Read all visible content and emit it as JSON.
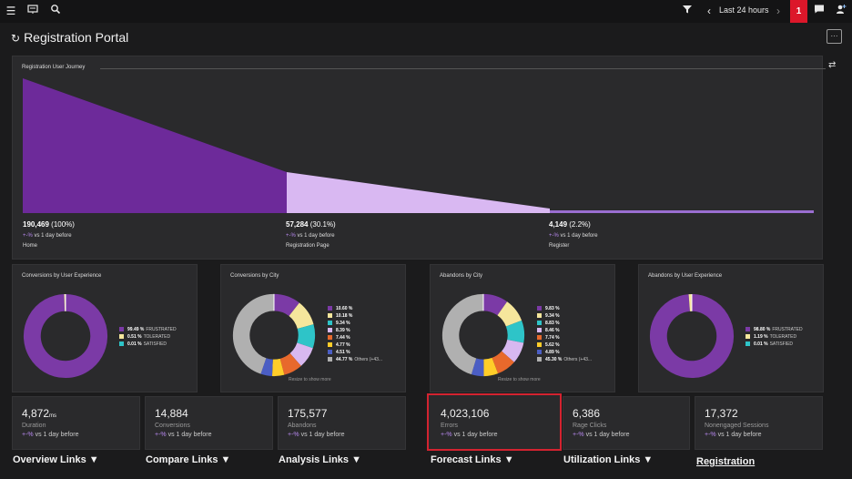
{
  "topbar": {
    "menu_icon": "hamburger-icon",
    "board_icon": "dashboard-icon",
    "search_icon": "search-icon",
    "filter_icon": "filter-icon",
    "prev_icon": "chevron-left-icon",
    "timeframe": "Last 24 hours",
    "next_icon": "chevron-right-icon",
    "alert_count": "1",
    "chat_icon": "chat-icon",
    "user_icon": "user-add-icon"
  },
  "page": {
    "title": "Registration Portal",
    "more_label": "···"
  },
  "journey": {
    "title": "Registration User Journey",
    "stages": [
      {
        "value": "190,469",
        "pct": "(100%)",
        "delta": "+-%",
        "cmp": " vs 1 day before",
        "name": "Home"
      },
      {
        "value": "57,284",
        "pct": "(30.1%)",
        "delta": "+-%",
        "cmp": " vs 1 day before",
        "name": "Registration Page"
      },
      {
        "value": "4,149",
        "pct": "(2.2%)",
        "delta": "+-%",
        "cmp": " vs 1 day before",
        "name": "Register"
      }
    ]
  },
  "donuts": [
    {
      "title": "Conversions by User Experience",
      "legend": [
        {
          "pct": "99.49 %",
          "label": "FRUSTRATED",
          "color": "#7b3aa6"
        },
        {
          "pct": "0.51 %",
          "label": "TOLERATED",
          "color": "#f5e69c"
        },
        {
          "pct": "0.01 %",
          "label": "SATISFIED",
          "color": "#2ec4c8"
        }
      ],
      "slices": [
        99.49,
        0.51,
        0.01
      ],
      "colors": [
        "#7b3aa6",
        "#f5e69c",
        "#2ec4c8"
      ]
    },
    {
      "title": "Conversions by City",
      "legend": [
        {
          "pct": "10.60 %",
          "label": "",
          "color": "#7b3aa6"
        },
        {
          "pct": "10.18 %",
          "label": "",
          "color": "#f5e69c"
        },
        {
          "pct": "9.34 %",
          "label": "",
          "color": "#2ec4c8"
        },
        {
          "pct": "8.39 %",
          "label": "",
          "color": "#d8b8f0"
        },
        {
          "pct": "7.44 %",
          "label": "",
          "color": "#e8692c"
        },
        {
          "pct": "4.77 %",
          "label": "",
          "color": "#ffcd29"
        },
        {
          "pct": "4.51 %",
          "label": "",
          "color": "#4b5ec4"
        },
        {
          "pct": "44.77 %",
          "label": "Others (+43...",
          "color": "#b0b0b0"
        }
      ],
      "slices": [
        10.6,
        10.18,
        9.34,
        8.39,
        7.44,
        4.77,
        4.51,
        44.77
      ],
      "colors": [
        "#7b3aa6",
        "#f5e69c",
        "#2ec4c8",
        "#d8b8f0",
        "#e8692c",
        "#ffcd29",
        "#4b5ec4",
        "#b0b0b0"
      ],
      "note": "Resize to show more"
    },
    {
      "title": "Abandons by City",
      "legend": [
        {
          "pct": "9.83 %",
          "label": "",
          "color": "#7b3aa6"
        },
        {
          "pct": "9.34 %",
          "label": "",
          "color": "#f5e69c"
        },
        {
          "pct": "8.83 %",
          "label": "",
          "color": "#2ec4c8"
        },
        {
          "pct": "8.46 %",
          "label": "",
          "color": "#d8b8f0"
        },
        {
          "pct": "7.74 %",
          "label": "",
          "color": "#e8692c"
        },
        {
          "pct": "5.62 %",
          "label": "",
          "color": "#ffcd29"
        },
        {
          "pct": "4.89 %",
          "label": "",
          "color": "#4b5ec4"
        },
        {
          "pct": "45.30 %",
          "label": "Others (+43...",
          "color": "#b0b0b0"
        }
      ],
      "slices": [
        9.83,
        9.34,
        8.83,
        8.46,
        7.74,
        5.62,
        4.89,
        45.3
      ],
      "colors": [
        "#7b3aa6",
        "#f5e69c",
        "#2ec4c8",
        "#d8b8f0",
        "#e8692c",
        "#ffcd29",
        "#4b5ec4",
        "#b0b0b0"
      ],
      "note": "Resize to show more"
    },
    {
      "title": "Abandons by User Experience",
      "legend": [
        {
          "pct": "98.80 %",
          "label": "FRUSTRATED",
          "color": "#7b3aa6"
        },
        {
          "pct": "1.19 %",
          "label": "TOLERATED",
          "color": "#f5e69c"
        },
        {
          "pct": "0.01 %",
          "label": "SATISFIED",
          "color": "#2ec4c8"
        }
      ],
      "slices": [
        98.8,
        1.19,
        0.01
      ],
      "colors": [
        "#7b3aa6",
        "#f5e69c",
        "#2ec4c8"
      ]
    }
  ],
  "tiles": [
    {
      "value": "4,872",
      "unit": "ms",
      "label": "Duration",
      "delta": "+-%",
      "cmp": " vs 1 day before"
    },
    {
      "value": "14,884",
      "unit": "",
      "label": "Conversions",
      "delta": "+-%",
      "cmp": " vs 1 day before"
    },
    {
      "value": "175,577",
      "unit": "",
      "label": "Abandons",
      "delta": "+-%",
      "cmp": " vs 1 day before"
    },
    {
      "value": "4,023,106",
      "unit": "",
      "label": "Errors",
      "delta": "+-%",
      "cmp": " vs 1 day before"
    },
    {
      "value": "6,386",
      "unit": "",
      "label": "Rage Clicks",
      "delta": "+-%",
      "cmp": " vs 1 day before"
    },
    {
      "value": "17,372",
      "unit": "",
      "label": "Nonengaged Sessions",
      "delta": "+-%",
      "cmp": " vs 1 day before"
    }
  ],
  "links": {
    "overview": "Overview Links ▼",
    "compare": "Compare Links ▼",
    "analysis": "Analysis Links ▼",
    "forecast": "Forecast Links ▼",
    "utilization": "Utilization Links ▼",
    "registration": "Registration"
  }
}
